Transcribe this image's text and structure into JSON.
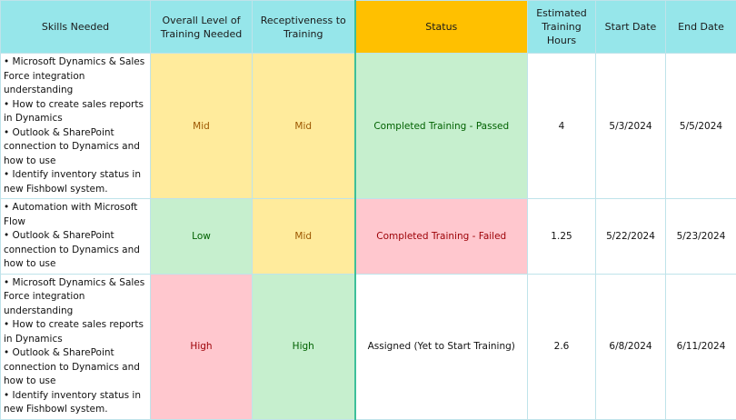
{
  "headers": {
    "skills": "Skills Needed",
    "overall": "Overall Level of Training Needed",
    "receptiveness": "Receptiveness to Training",
    "status": "Status",
    "hours": "Estimated Training Hours",
    "start": "Start Date",
    "end": "End Date"
  },
  "rows": [
    {
      "skills": [
        "• Microsoft Dynamics & Sales Force integration understanding",
        "• How to create sales reports in Dynamics",
        "• Outlook & SharePoint connection to Dynamics and how to use",
        "• Identify inventory status in new Fishbowl system."
      ],
      "overall": "Mid",
      "receptiveness": "Mid",
      "status": "Completed Training - Passed",
      "hours": "4",
      "start": "5/3/2024",
      "end": "5/5/2024"
    },
    {
      "skills": [
        "• Automation with Microsoft Flow",
        "• Outlook & SharePoint connection to Dynamics and how to use"
      ],
      "overall": "Low",
      "receptiveness": "Mid",
      "status": "Completed Training - Failed",
      "hours": "1.25",
      "start": "5/22/2024",
      "end": "5/23/2024"
    },
    {
      "skills": [
        "• Microsoft Dynamics & Sales Force integration understanding",
        "• How to create sales reports in Dynamics",
        "• Outlook & SharePoint connection to Dynamics and how to use",
        "• Identify inventory status in new Fishbowl system."
      ],
      "overall": "High",
      "receptiveness": "High",
      "status": "Assigned (Yet to Start Training)",
      "hours": "2.6",
      "start": "6/8/2024",
      "end": "6/11/2024"
    }
  ]
}
